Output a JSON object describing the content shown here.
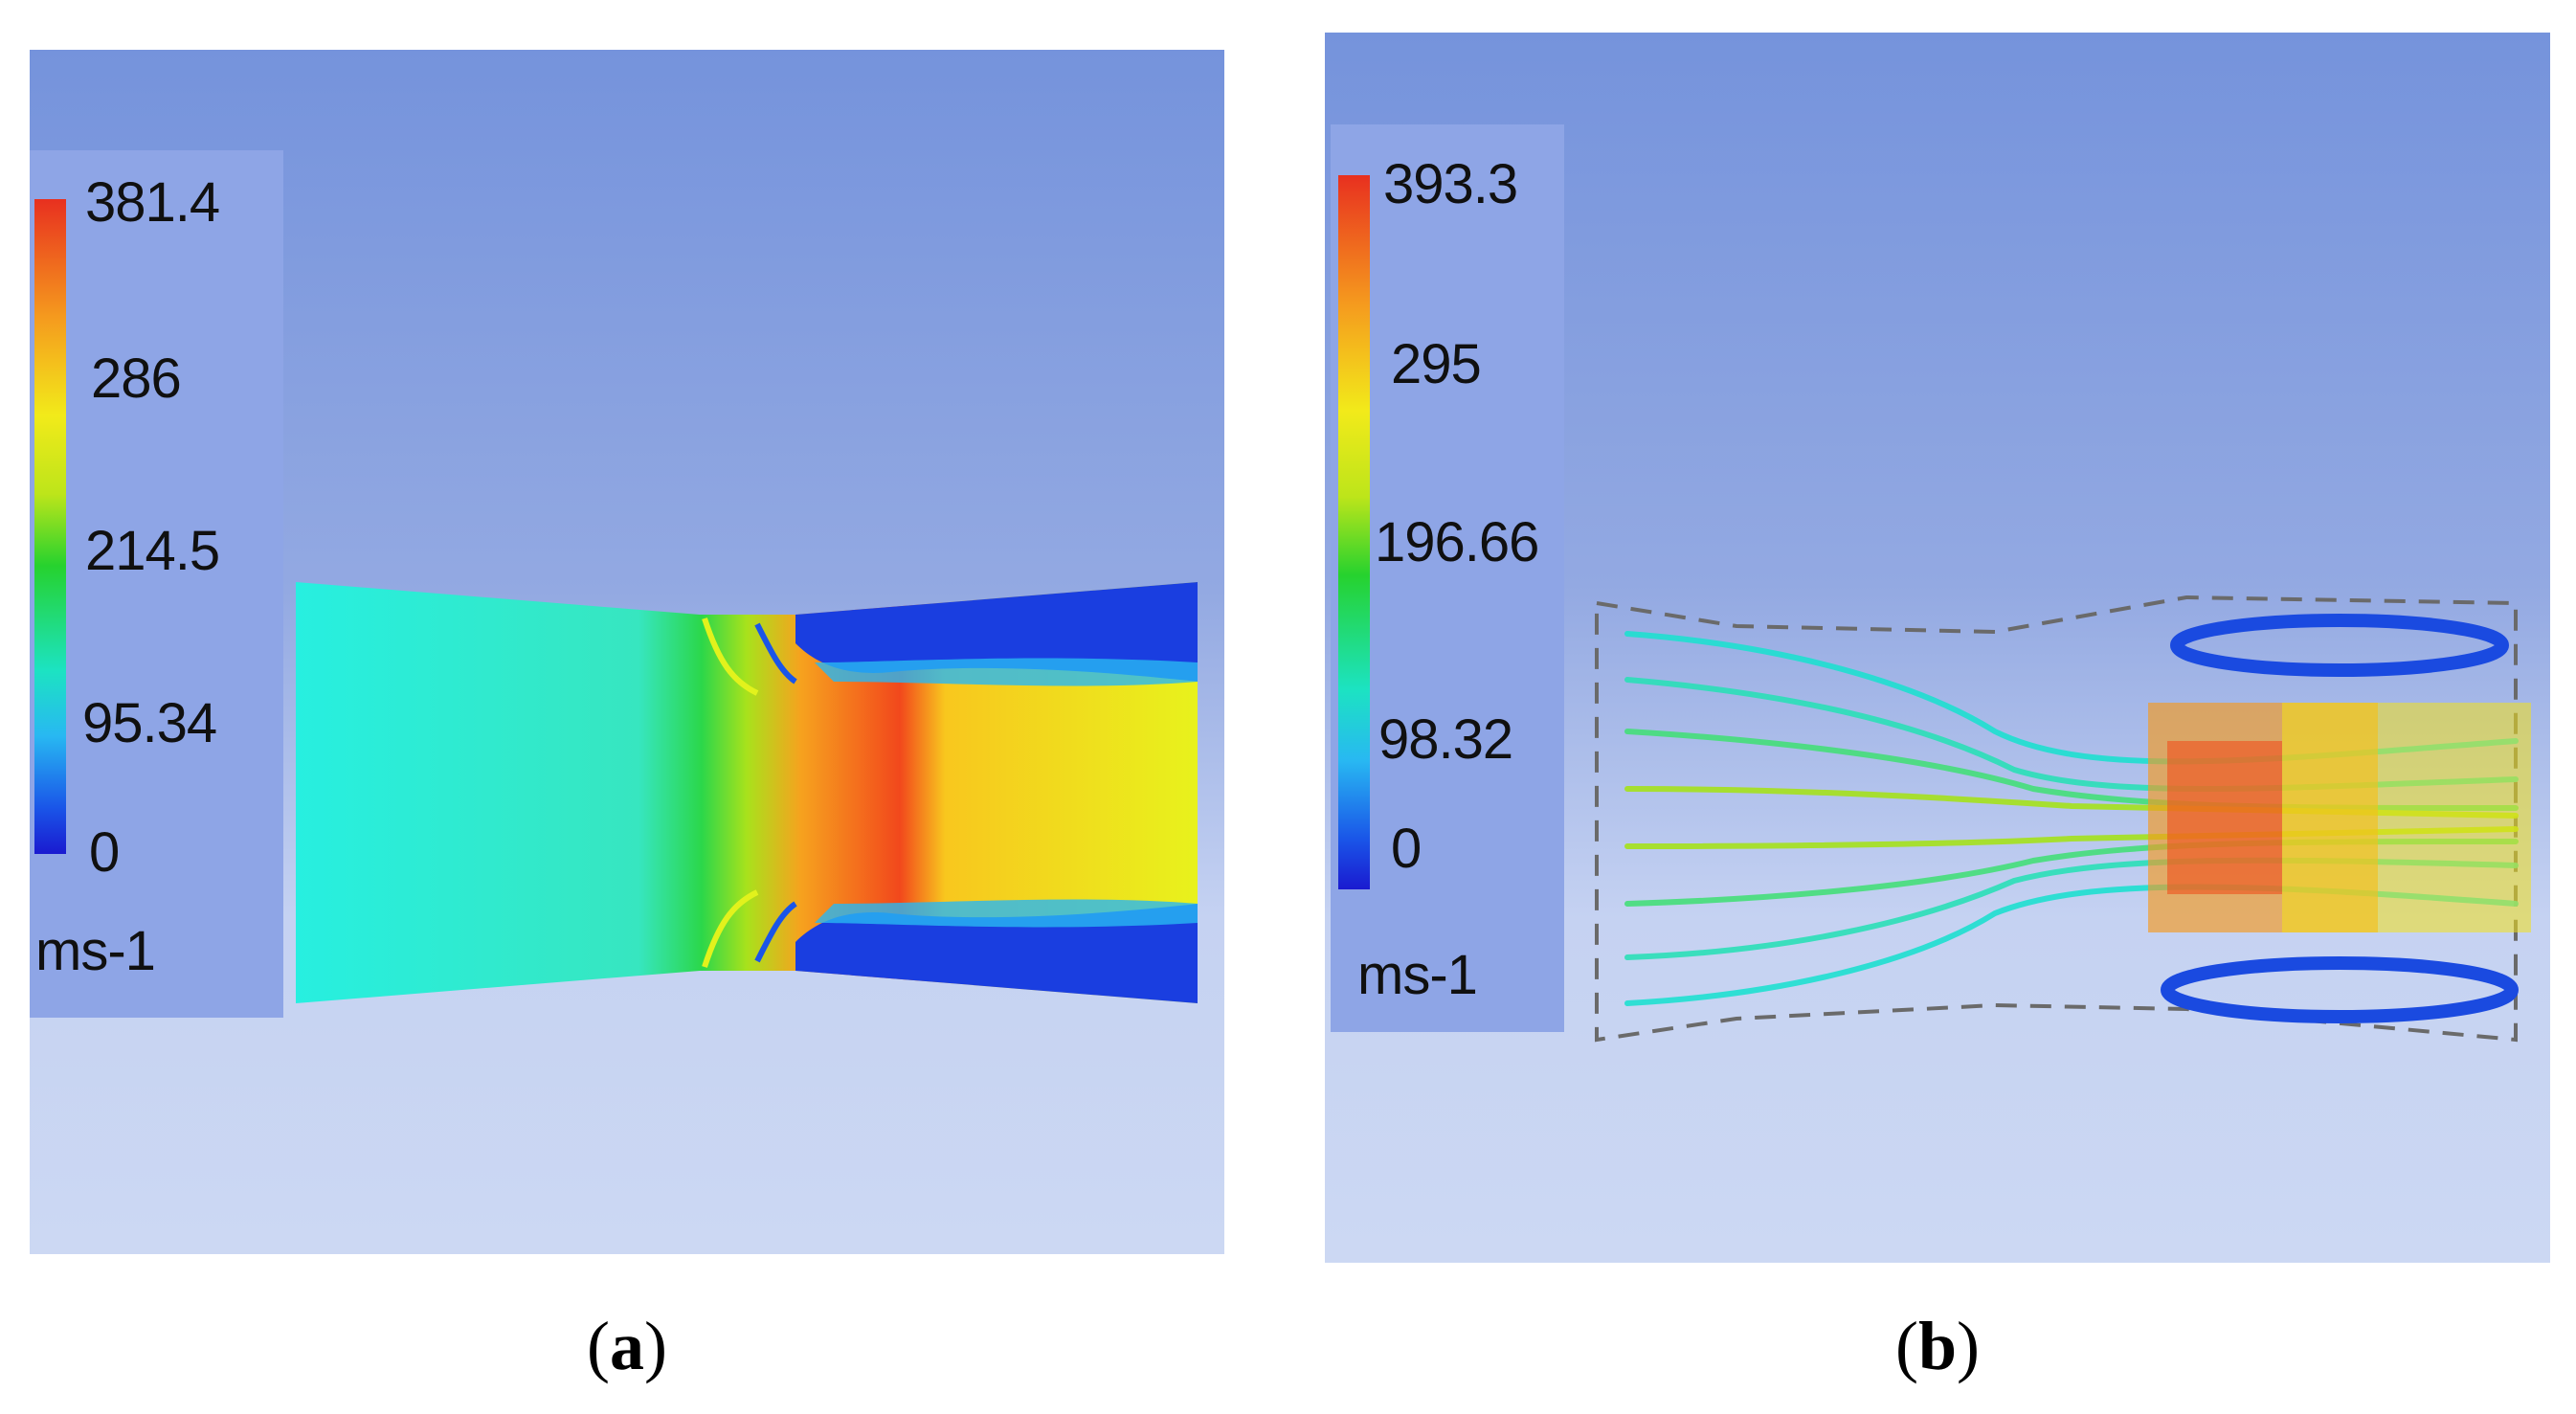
{
  "panels": [
    {
      "id": "a",
      "caption_letter": "a",
      "legend": {
        "max": "381.4",
        "t2": "286",
        "t3": "214.5",
        "t4": "95.34",
        "min": "0",
        "unit": "ms-1"
      }
    },
    {
      "id": "b",
      "caption_letter": "b",
      "legend": {
        "max": "393.3",
        "t2": "295",
        "t3": "196.66",
        "t4": "98.32",
        "min": "0",
        "unit": "ms-1"
      }
    }
  ],
  "colormap": [
    "#1a1ad0",
    "#1a55e8",
    "#28b8f2",
    "#1ce3c2",
    "#26d22e",
    "#bde51a",
    "#f2ea1a",
    "#f59a1e",
    "#e8301f"
  ]
}
